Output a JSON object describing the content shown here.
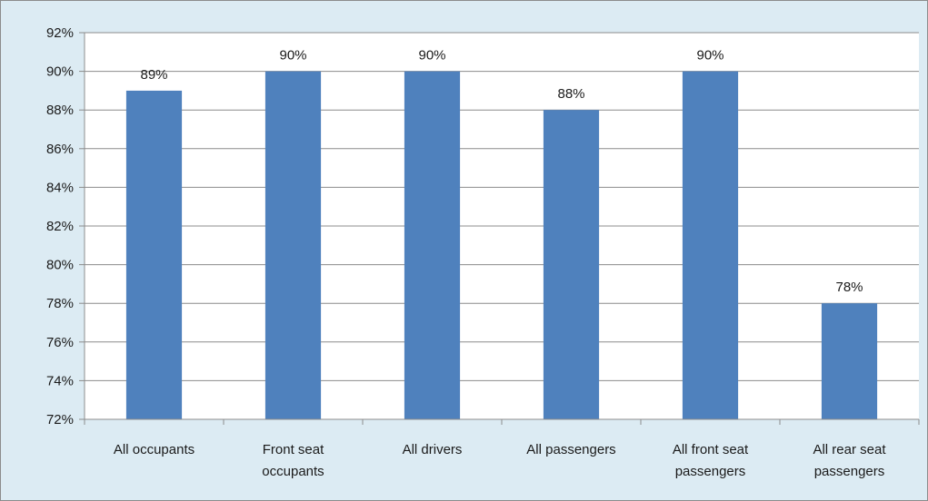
{
  "chart_data": {
    "type": "bar",
    "title": "",
    "xlabel": "",
    "ylabel": "",
    "categories": [
      [
        "All occupants"
      ],
      [
        "Front seat",
        "occupants"
      ],
      [
        "All drivers"
      ],
      [
        "All passengers"
      ],
      [
        "All front seat",
        "passengers"
      ],
      [
        "All rear seat",
        "passengers"
      ]
    ],
    "values": [
      89,
      90,
      90,
      88,
      90,
      78
    ],
    "data_labels": [
      "89%",
      "90%",
      "90%",
      "88%",
      "90%",
      "78%"
    ],
    "ylim": [
      72,
      92
    ],
    "yticks": [
      72,
      74,
      76,
      78,
      80,
      82,
      84,
      86,
      88,
      90,
      92
    ],
    "ytick_labels": [
      "72%",
      "74%",
      "76%",
      "78%",
      "80%",
      "82%",
      "84%",
      "86%",
      "88%",
      "90%",
      "92%"
    ],
    "grid": true,
    "legend": "none",
    "colors": {
      "bar": "#4f81bd",
      "background": "#dcebf3",
      "plot_background": "#ffffff",
      "gridline": "#8c8c8c"
    }
  }
}
